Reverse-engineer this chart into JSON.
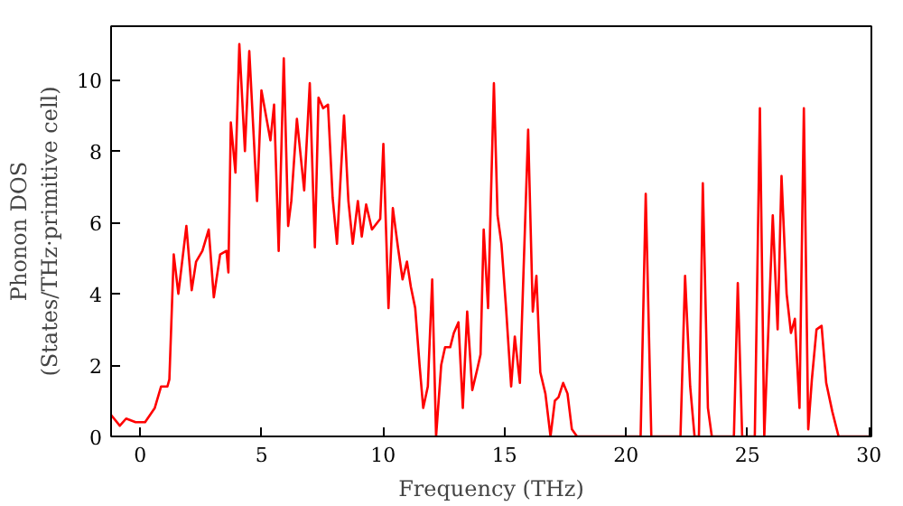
{
  "chart_data": {
    "type": "line",
    "xlabel": "Frequency (THz)",
    "ylabel": "Phonon DOS\n(States/THz·primitive cell)",
    "x": [
      -1.2,
      -0.84,
      -0.58,
      -0.19,
      0.2,
      0.6,
      0.86,
      1.12,
      1.2,
      1.38,
      1.57,
      1.9,
      2.12,
      2.3,
      2.56,
      2.82,
      3.03,
      3.29,
      3.55,
      3.63,
      3.73,
      3.92,
      4.08,
      4.31,
      4.49,
      4.81,
      4.99,
      5.36,
      5.51,
      5.7,
      5.91,
      6.09,
      6.22,
      6.45,
      6.75,
      6.98,
      7.19,
      7.34,
      7.53,
      7.73,
      7.92,
      8.1,
      8.39,
      8.57,
      8.75,
      8.96,
      9.12,
      9.3,
      9.54,
      9.88,
      10.01,
      10.22,
      10.4,
      10.61,
      10.8,
      10.98,
      11.14,
      11.32,
      11.5,
      11.65,
      11.84,
      12.02,
      12.18,
      12.39,
      12.55,
      12.76,
      12.91,
      13.1,
      13.28,
      13.46,
      13.67,
      13.88,
      14.01,
      14.14,
      14.32,
      14.56,
      14.71,
      14.87,
      15.06,
      15.27,
      15.42,
      15.63,
      15.97,
      16.16,
      16.31,
      16.47,
      16.68,
      16.89,
      17.07,
      17.22,
      17.41,
      17.59,
      17.77,
      17.98,
      20.6,
      20.81,
      21.04,
      22.24,
      22.43,
      22.64,
      22.82,
      23.0,
      23.16,
      23.37,
      23.53,
      24.44,
      24.6,
      24.78,
      25.3,
      25.51,
      25.69,
      26.04,
      26.24,
      26.4,
      26.61,
      26.79,
      26.95,
      27.14,
      27.32,
      27.5,
      27.65,
      27.84,
      28.05,
      28.24,
      28.49,
      28.75,
      30.0
    ],
    "series": [
      {
        "color": "#ff0000",
        "values": [
          0.6,
          0.3,
          0.5,
          0.4,
          0.4,
          0.8,
          1.4,
          1.4,
          1.6,
          5.1,
          4.0,
          5.9,
          4.1,
          4.9,
          5.2,
          5.8,
          3.9,
          5.1,
          5.2,
          4.6,
          8.8,
          7.4,
          11.0,
          8.0,
          10.8,
          6.6,
          9.7,
          8.3,
          9.3,
          5.2,
          10.6,
          5.9,
          6.6,
          8.9,
          6.9,
          9.9,
          5.3,
          9.5,
          9.2,
          9.3,
          6.7,
          5.4,
          9.0,
          6.6,
          5.4,
          6.6,
          5.6,
          6.5,
          5.8,
          6.1,
          8.2,
          3.6,
          6.4,
          5.3,
          4.4,
          4.9,
          4.2,
          3.6,
          2.0,
          0.8,
          1.4,
          4.4,
          0.0,
          2.0,
          2.5,
          2.5,
          2.9,
          3.2,
          0.8,
          3.5,
          1.3,
          1.9,
          2.3,
          5.8,
          3.6,
          9.9,
          6.2,
          5.4,
          3.6,
          1.4,
          2.8,
          1.5,
          8.6,
          3.5,
          4.5,
          1.8,
          1.2,
          0.0,
          1.0,
          1.1,
          1.5,
          1.2,
          0.2,
          0.0,
          0.0,
          6.8,
          0.0,
          0.0,
          4.5,
          1.4,
          0.0,
          0.0,
          7.1,
          0.8,
          0.0,
          0.0,
          4.3,
          0.0,
          0.0,
          9.2,
          0.0,
          6.2,
          3.0,
          7.3,
          4.0,
          2.9,
          3.3,
          0.8,
          9.2,
          0.2,
          1.6,
          3.0,
          3.1,
          1.5,
          0.7,
          0.0,
          0.0
        ]
      }
    ],
    "xlim": [
      -1.2,
      30.1
    ],
    "ylim": [
      0,
      11.5
    ],
    "xticks": [
      0,
      5,
      10,
      15,
      20,
      25,
      30
    ],
    "yticks": [
      0,
      2,
      4,
      6,
      8,
      10
    ],
    "grid": false
  }
}
